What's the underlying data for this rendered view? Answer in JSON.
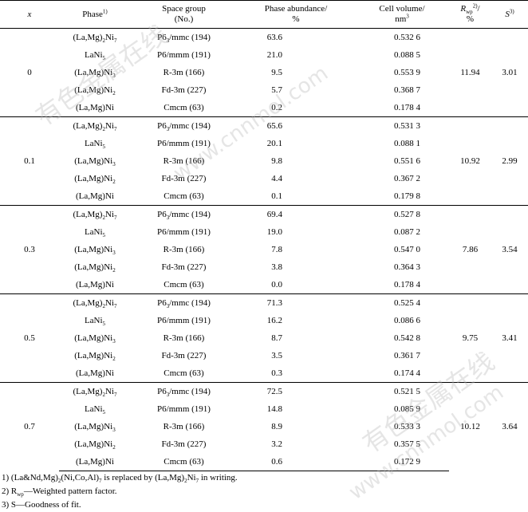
{
  "header": {
    "x": "x",
    "phase": "Phase",
    "phase_sup": "1)",
    "space_group": "Space group",
    "space_group_sub": "(No.)",
    "abundance": "Phase abundance/",
    "abundance_unit": "%",
    "cell_volume": "Cell volume/",
    "cell_volume_unit": "nm",
    "cell_volume_unit_sup": "3",
    "rwp": "R",
    "rwp_sub": "wp",
    "rwp_sup": "2)",
    "rwp_unit": "/",
    "rwp_unit2": "%",
    "s": "S",
    "s_sup": "3)"
  },
  "phases": [
    {
      "main": "(La,Mg)",
      "sub1": "2",
      "tail": "Ni",
      "sub2": "7"
    },
    {
      "main": "LaNi",
      "sub1": "",
      "tail": "",
      "sub2": "5"
    },
    {
      "main": "(La,Mg)Ni",
      "sub1": "",
      "tail": "",
      "sub2": "3"
    },
    {
      "main": "(La,Mg)Ni",
      "sub1": "",
      "tail": "",
      "sub2": "2"
    },
    {
      "main": "(La,Mg)Ni",
      "sub1": "",
      "tail": "",
      "sub2": ""
    }
  ],
  "space_groups": [
    {
      "pre": "P6",
      "sub": "3",
      "post": "/mmc (194)"
    },
    {
      "pre": "P6/mmm (191)",
      "sub": "",
      "post": ""
    },
    {
      "pre": "R-3m (166)",
      "sub": "",
      "post": ""
    },
    {
      "pre": "Fd-3m (227)",
      "sub": "",
      "post": ""
    },
    {
      "pre": "Cmcm (63)",
      "sub": "",
      "post": ""
    }
  ],
  "groups": [
    {
      "x": "0",
      "rwp": "11.94",
      "s": "3.01",
      "abundance": [
        "63.6",
        "21.0",
        "9.5",
        "5.7",
        "0.2"
      ],
      "volume": [
        "0.532 6",
        "0.088 5",
        "0.553 9",
        "0.368 7",
        "0.178 4"
      ]
    },
    {
      "x": "0.1",
      "rwp": "10.92",
      "s": "2.99",
      "abundance": [
        "65.6",
        "20.1",
        "9.8",
        "4.4",
        "0.1"
      ],
      "volume": [
        "0.531 3",
        "0.088 1",
        "0.551 6",
        "0.367 2",
        "0.179 8"
      ]
    },
    {
      "x": "0.3",
      "rwp": "7.86",
      "s": "3.54",
      "abundance": [
        "69.4",
        "19.0",
        "7.8",
        "3.8",
        "0.0"
      ],
      "volume": [
        "0.527 8",
        "0.087 2",
        "0.547 0",
        "0.364 3",
        "0.178 4"
      ]
    },
    {
      "x": "0.5",
      "rwp": "9.75",
      "s": "3.41",
      "abundance": [
        "71.3",
        "16.2",
        "8.7",
        "3.5",
        "0.3"
      ],
      "volume": [
        "0.525 4",
        "0.086 6",
        "0.542 8",
        "0.361 7",
        "0.174 4"
      ]
    },
    {
      "x": "0.7",
      "rwp": "10.12",
      "s": "3.64",
      "abundance": [
        "72.5",
        "14.8",
        "8.9",
        "3.2",
        "0.6"
      ],
      "volume": [
        "0.521 5",
        "0.085 9",
        "0.533 3",
        "0.357 5",
        "0.172 9"
      ]
    }
  ],
  "notes": [
    {
      "a": "1) (La&Nd,Mg)",
      "s1": "2",
      "b": "(Ni,Co,Al)",
      "s2": "7",
      "c": " is replaced by (La,Mg)",
      "s3": "2",
      "d": "Ni",
      "s4": "7",
      "e": " in writing."
    },
    {
      "a": "2) R",
      "s1": "wp",
      "b": "—Weighted pattern factor."
    },
    {
      "a": "3) S—Goodness of fit."
    }
  ],
  "watermarks": [
    "有色金属在线",
    "www.cnnmol.com"
  ]
}
